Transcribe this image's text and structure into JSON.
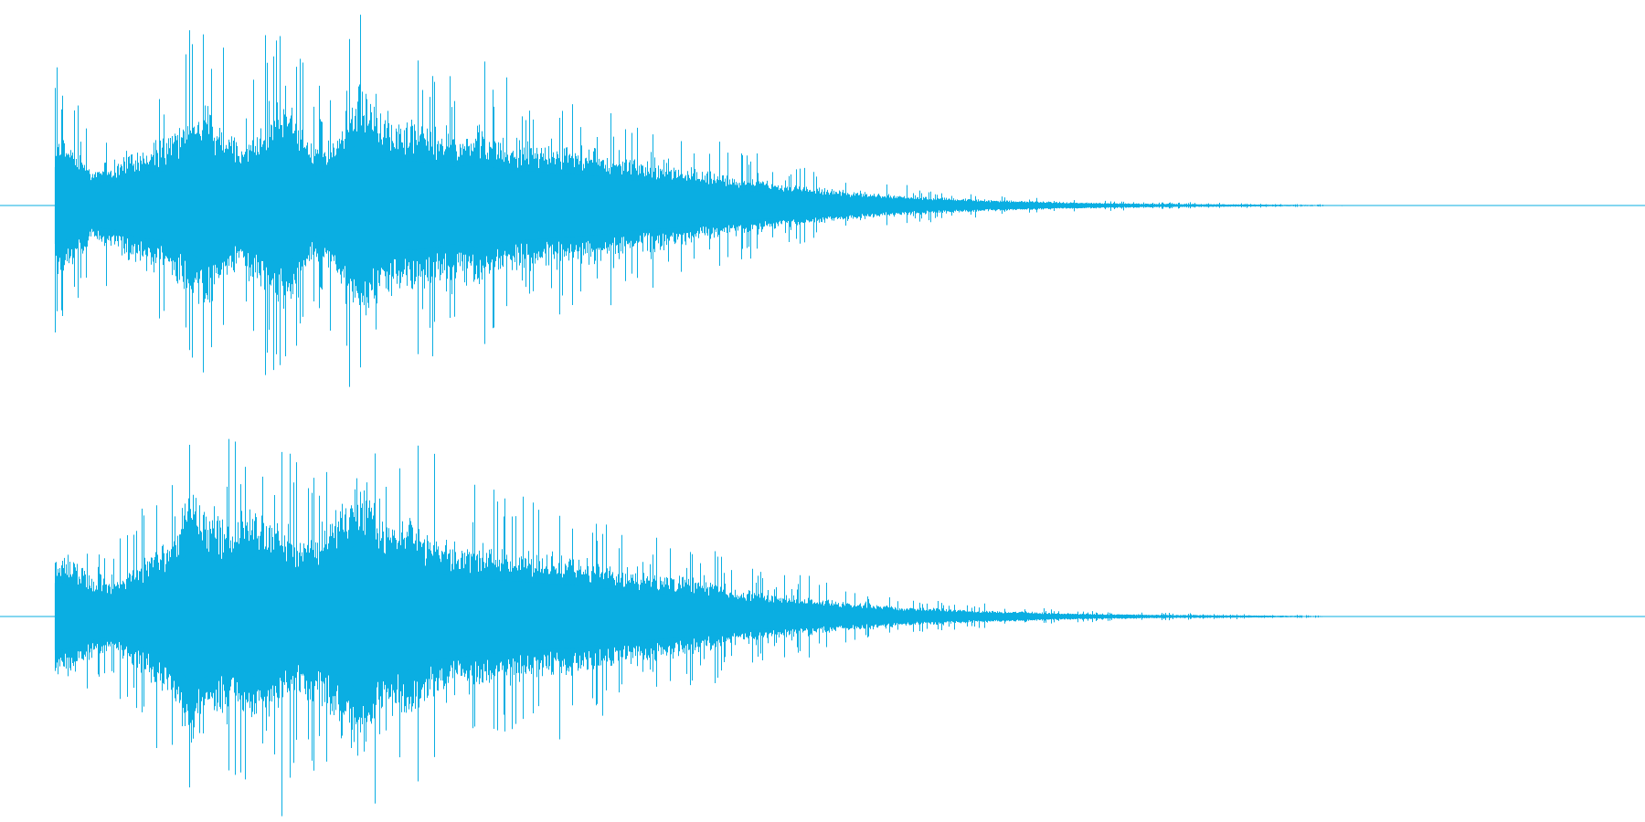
{
  "waveform": {
    "color": "#0aaee2",
    "channels": [
      {
        "name": "left",
        "envelope": [
          [
            0.0,
            0.0
          ],
          [
            0.005,
            0.02
          ],
          [
            0.006,
            0.55
          ],
          [
            0.01,
            0.35
          ],
          [
            0.015,
            0.45
          ],
          [
            0.025,
            0.5
          ],
          [
            0.04,
            0.4
          ],
          [
            0.055,
            0.25
          ],
          [
            0.07,
            0.28
          ],
          [
            0.085,
            0.38
          ],
          [
            0.1,
            0.4
          ],
          [
            0.115,
            0.55
          ],
          [
            0.125,
            0.65
          ],
          [
            0.14,
            0.4
          ],
          [
            0.155,
            0.45
          ],
          [
            0.17,
            0.7
          ],
          [
            0.18,
            0.6
          ],
          [
            0.19,
            0.35
          ],
          [
            0.205,
            0.45
          ],
          [
            0.22,
            0.8
          ],
          [
            0.23,
            0.55
          ],
          [
            0.245,
            0.52
          ],
          [
            0.26,
            0.5
          ],
          [
            0.275,
            0.45
          ],
          [
            0.29,
            0.48
          ],
          [
            0.305,
            0.42
          ],
          [
            0.32,
            0.4
          ],
          [
            0.335,
            0.38
          ],
          [
            0.35,
            0.36
          ],
          [
            0.365,
            0.34
          ],
          [
            0.38,
            0.3
          ],
          [
            0.395,
            0.28
          ],
          [
            0.41,
            0.26
          ],
          [
            0.425,
            0.22
          ],
          [
            0.44,
            0.2
          ],
          [
            0.455,
            0.17
          ],
          [
            0.47,
            0.15
          ],
          [
            0.49,
            0.12
          ],
          [
            0.51,
            0.1
          ],
          [
            0.53,
            0.08
          ],
          [
            0.55,
            0.06
          ],
          [
            0.57,
            0.05
          ],
          [
            0.59,
            0.04
          ],
          [
            0.62,
            0.03
          ],
          [
            0.65,
            0.02
          ],
          [
            0.7,
            0.012
          ],
          [
            0.75,
            0.008
          ],
          [
            0.8,
            0.004
          ],
          [
            0.83,
            0.0
          ],
          [
            1.0,
            0.0
          ]
        ]
      },
      {
        "name": "right",
        "envelope": [
          [
            0.0,
            0.0
          ],
          [
            0.005,
            0.02
          ],
          [
            0.006,
            0.5
          ],
          [
            0.01,
            0.35
          ],
          [
            0.015,
            0.42
          ],
          [
            0.025,
            0.4
          ],
          [
            0.04,
            0.38
          ],
          [
            0.055,
            0.28
          ],
          [
            0.07,
            0.22
          ],
          [
            0.085,
            0.35
          ],
          [
            0.1,
            0.45
          ],
          [
            0.115,
            0.75
          ],
          [
            0.125,
            0.7
          ],
          [
            0.14,
            0.55
          ],
          [
            0.155,
            0.7
          ],
          [
            0.17,
            0.6
          ],
          [
            0.18,
            0.5
          ],
          [
            0.195,
            0.55
          ],
          [
            0.21,
            0.75
          ],
          [
            0.22,
            0.88
          ],
          [
            0.235,
            0.6
          ],
          [
            0.245,
            0.65
          ],
          [
            0.26,
            0.52
          ],
          [
            0.275,
            0.48
          ],
          [
            0.29,
            0.45
          ],
          [
            0.305,
            0.42
          ],
          [
            0.32,
            0.4
          ],
          [
            0.335,
            0.38
          ],
          [
            0.35,
            0.36
          ],
          [
            0.365,
            0.33
          ],
          [
            0.38,
            0.3
          ],
          [
            0.395,
            0.27
          ],
          [
            0.41,
            0.25
          ],
          [
            0.425,
            0.22
          ],
          [
            0.44,
            0.19
          ],
          [
            0.455,
            0.16
          ],
          [
            0.47,
            0.14
          ],
          [
            0.49,
            0.12
          ],
          [
            0.51,
            0.09
          ],
          [
            0.53,
            0.08
          ],
          [
            0.55,
            0.06
          ],
          [
            0.57,
            0.05
          ],
          [
            0.59,
            0.04
          ],
          [
            0.62,
            0.03
          ],
          [
            0.65,
            0.02
          ],
          [
            0.7,
            0.012
          ],
          [
            0.75,
            0.008
          ],
          [
            0.8,
            0.004
          ],
          [
            0.83,
            0.0
          ],
          [
            1.0,
            0.0
          ]
        ]
      }
    ]
  }
}
